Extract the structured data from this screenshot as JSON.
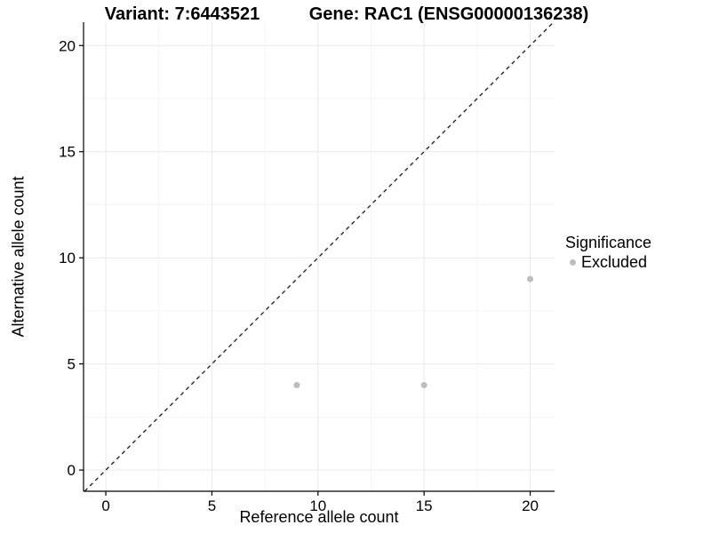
{
  "chart_data": {
    "type": "scatter",
    "variant_title": "Variant: 7:6443521",
    "gene_title": "Gene: RAC1 (ENSG00000136238)",
    "xlabel": "Reference allele count",
    "ylabel": "Alternative allele count",
    "xlim": [
      -1.05,
      21.15
    ],
    "ylim": [
      -1.0,
      21.1
    ],
    "x_ticks": [
      0,
      5,
      10,
      15,
      20
    ],
    "y_ticks": [
      0,
      5,
      10,
      15,
      20
    ],
    "x_minor_ticks": [
      2.5,
      7.5,
      12.5,
      17.5
    ],
    "y_minor_ticks": [
      2.5,
      7.5,
      12.5,
      17.5
    ],
    "grid": true,
    "legend_position": "right",
    "series": [
      {
        "name": "Excluded",
        "color": "#bdbdbd",
        "points": [
          {
            "x": 9,
            "y": 4
          },
          {
            "x": 15,
            "y": 4
          },
          {
            "x": 20,
            "y": 9
          }
        ]
      }
    ],
    "reference_line": {
      "equation": "y = x",
      "style": "dashed",
      "color": "#1a1a1a"
    },
    "legend": {
      "title": "Significance",
      "entries": [
        {
          "label": "Excluded",
          "color": "#bdbdbd"
        }
      ]
    }
  },
  "style": {
    "background": "#ffffff",
    "axis_color": "#000000",
    "tick_label_color": "#000000",
    "grid_major": "#e9e9e9",
    "grid_minor": "#f4f4f4",
    "point_color": "#bdbdbd"
  }
}
